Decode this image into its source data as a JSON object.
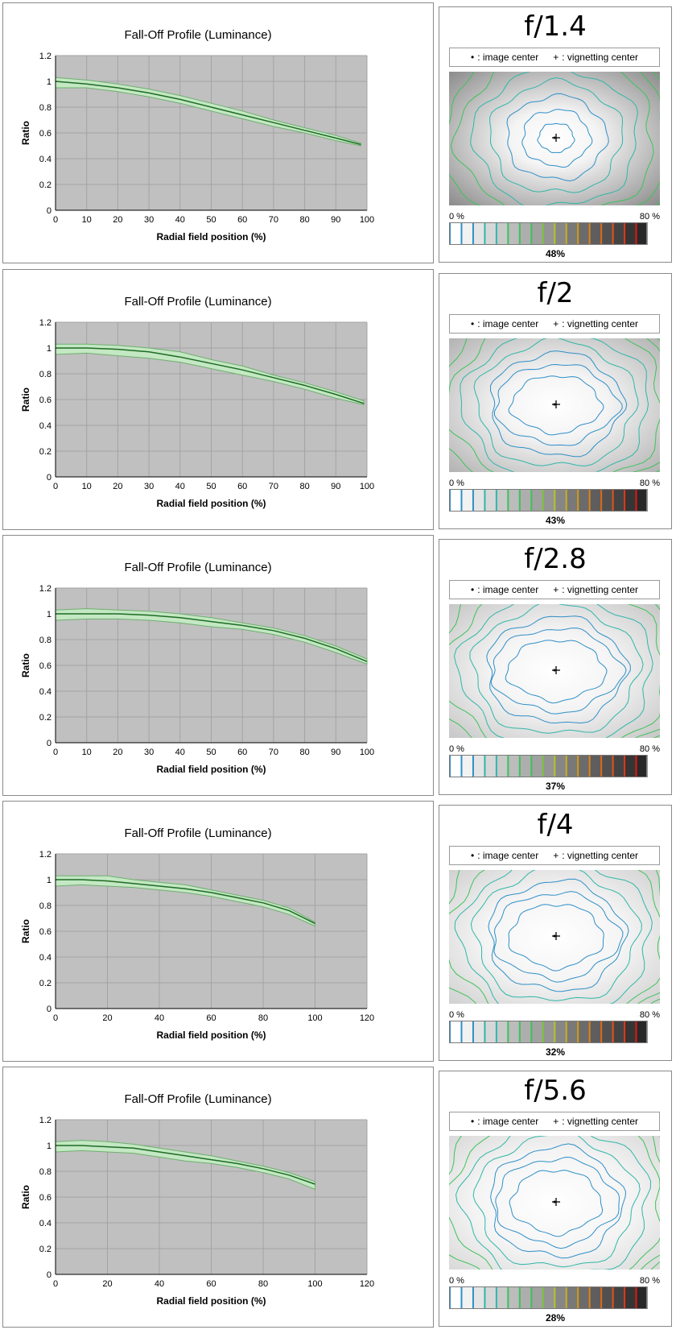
{
  "legend": {
    "image_center_symbol": "•",
    "image_center_text": ": image center",
    "vignetting_center_symbol": "+",
    "vignetting_center_text": ": vignetting center"
  },
  "scale": {
    "min_label": "0 %",
    "max_label": "80 %"
  },
  "colors": {
    "plot_bg": "#c0c0c0",
    "grid": "#a3a3a3",
    "band_fill": "#c3e8c3",
    "band_edge": "#6fae6f",
    "curve": "#1e6b24",
    "contour_blue": "#2f8fc8",
    "contour_teal": "#30b6a8",
    "contour_green": "#3fc25a"
  },
  "chart_data": [
    {
      "type": "line",
      "title": "Fall-Off Profile (Luminance)",
      "xlabel": "Radial field position (%)",
      "ylabel": "Ratio",
      "xlim": [
        0,
        100
      ],
      "xticks": [
        0,
        10,
        20,
        30,
        40,
        50,
        60,
        70,
        80,
        90,
        100
      ],
      "ylim": [
        0,
        1.2
      ],
      "yticks": [
        0,
        0.2,
        0.4,
        0.6,
        0.8,
        1,
        1.2
      ],
      "grid": true,
      "aperture": "f/1.4",
      "vignetting_percent": "48%",
      "series": [
        {
          "x": [
            0,
            10,
            20,
            30,
            40,
            50,
            60,
            70,
            80,
            90,
            98
          ],
          "values": [
            1.0,
            0.98,
            0.95,
            0.91,
            0.86,
            0.8,
            0.74,
            0.68,
            0.62,
            0.56,
            0.51
          ]
        }
      ],
      "band_upper": [
        1.03,
        1.01,
        0.98,
        0.94,
        0.89,
        0.83,
        0.77,
        0.7,
        0.64,
        0.58,
        0.52
      ],
      "band_lower": [
        0.95,
        0.95,
        0.92,
        0.88,
        0.83,
        0.77,
        0.71,
        0.65,
        0.6,
        0.54,
        0.5
      ]
    },
    {
      "type": "line",
      "title": "Fall-Off Profile (Luminance)",
      "xlabel": "Radial field position (%)",
      "ylabel": "Ratio",
      "xlim": [
        0,
        100
      ],
      "xticks": [
        0,
        10,
        20,
        30,
        40,
        50,
        60,
        70,
        80,
        90,
        100
      ],
      "ylim": [
        0,
        1.2
      ],
      "yticks": [
        0,
        0.2,
        0.4,
        0.6,
        0.8,
        1,
        1.2
      ],
      "grid": true,
      "aperture": "f/2",
      "vignetting_percent": "43%",
      "series": [
        {
          "x": [
            0,
            10,
            20,
            30,
            40,
            50,
            60,
            70,
            80,
            90,
            99
          ],
          "values": [
            1.0,
            1.0,
            0.99,
            0.97,
            0.93,
            0.88,
            0.83,
            0.77,
            0.71,
            0.64,
            0.57
          ]
        }
      ],
      "band_upper": [
        1.03,
        1.03,
        1.02,
        1.0,
        0.97,
        0.91,
        0.86,
        0.79,
        0.73,
        0.66,
        0.59
      ],
      "band_lower": [
        0.95,
        0.96,
        0.94,
        0.92,
        0.89,
        0.84,
        0.79,
        0.74,
        0.68,
        0.61,
        0.56
      ]
    },
    {
      "type": "line",
      "title": "Fall-Off Profile (Luminance)",
      "xlabel": "Radial field position (%)",
      "ylabel": "Ratio",
      "xlim": [
        0,
        100
      ],
      "xticks": [
        0,
        10,
        20,
        30,
        40,
        50,
        60,
        70,
        80,
        90,
        100
      ],
      "ylim": [
        0,
        1.2
      ],
      "yticks": [
        0,
        0.2,
        0.4,
        0.6,
        0.8,
        1,
        1.2
      ],
      "grid": true,
      "aperture": "f/2.8",
      "vignetting_percent": "37%",
      "series": [
        {
          "x": [
            0,
            10,
            20,
            30,
            40,
            50,
            60,
            70,
            80,
            90,
            100
          ],
          "values": [
            1.0,
            1.0,
            1.0,
            0.99,
            0.97,
            0.94,
            0.91,
            0.87,
            0.81,
            0.73,
            0.63
          ]
        }
      ],
      "band_upper": [
        1.03,
        1.04,
        1.03,
        1.02,
        1.0,
        0.97,
        0.93,
        0.89,
        0.83,
        0.75,
        0.65
      ],
      "band_lower": [
        0.95,
        0.96,
        0.96,
        0.95,
        0.93,
        0.9,
        0.88,
        0.84,
        0.78,
        0.7,
        0.61
      ]
    },
    {
      "type": "line",
      "title": "Fall-Off Profile (Luminance)",
      "xlabel": "Radial field position (%)",
      "ylabel": "Ratio",
      "xlim": [
        0,
        120
      ],
      "xticks": [
        0,
        20,
        40,
        60,
        80,
        100,
        120
      ],
      "ylim": [
        0,
        1.2
      ],
      "yticks": [
        0,
        0.2,
        0.4,
        0.6,
        0.8,
        1,
        1.2
      ],
      "grid": true,
      "aperture": "f/4",
      "vignetting_percent": "32%",
      "series": [
        {
          "x": [
            0,
            10,
            20,
            30,
            40,
            50,
            60,
            70,
            80,
            90,
            100
          ],
          "values": [
            1.0,
            1.0,
            0.99,
            0.97,
            0.95,
            0.93,
            0.9,
            0.86,
            0.82,
            0.76,
            0.66
          ]
        }
      ],
      "band_upper": [
        1.03,
        1.03,
        1.03,
        1.0,
        0.98,
        0.96,
        0.92,
        0.88,
        0.84,
        0.78,
        0.67
      ],
      "band_lower": [
        0.95,
        0.96,
        0.95,
        0.94,
        0.92,
        0.9,
        0.87,
        0.83,
        0.79,
        0.73,
        0.64
      ]
    },
    {
      "type": "line",
      "title": "Fall-Off Profile (Luminance)",
      "xlabel": "Radial field position (%)",
      "ylabel": "Ratio",
      "xlim": [
        0,
        120
      ],
      "xticks": [
        0,
        20,
        40,
        60,
        80,
        100,
        120
      ],
      "ylim": [
        0,
        1.2
      ],
      "yticks": [
        0,
        0.2,
        0.4,
        0.6,
        0.8,
        1,
        1.2
      ],
      "grid": true,
      "aperture": "f/5.6",
      "vignetting_percent": "28%",
      "series": [
        {
          "x": [
            0,
            10,
            20,
            30,
            40,
            50,
            60,
            70,
            80,
            90,
            100
          ],
          "values": [
            1.0,
            1.0,
            0.99,
            0.98,
            0.95,
            0.92,
            0.89,
            0.86,
            0.82,
            0.77,
            0.7
          ]
        }
      ],
      "band_upper": [
        1.03,
        1.04,
        1.03,
        1.01,
        0.98,
        0.95,
        0.92,
        0.88,
        0.84,
        0.79,
        0.72
      ],
      "band_lower": [
        0.95,
        0.96,
        0.95,
        0.94,
        0.91,
        0.88,
        0.86,
        0.83,
        0.79,
        0.74,
        0.66
      ]
    }
  ]
}
